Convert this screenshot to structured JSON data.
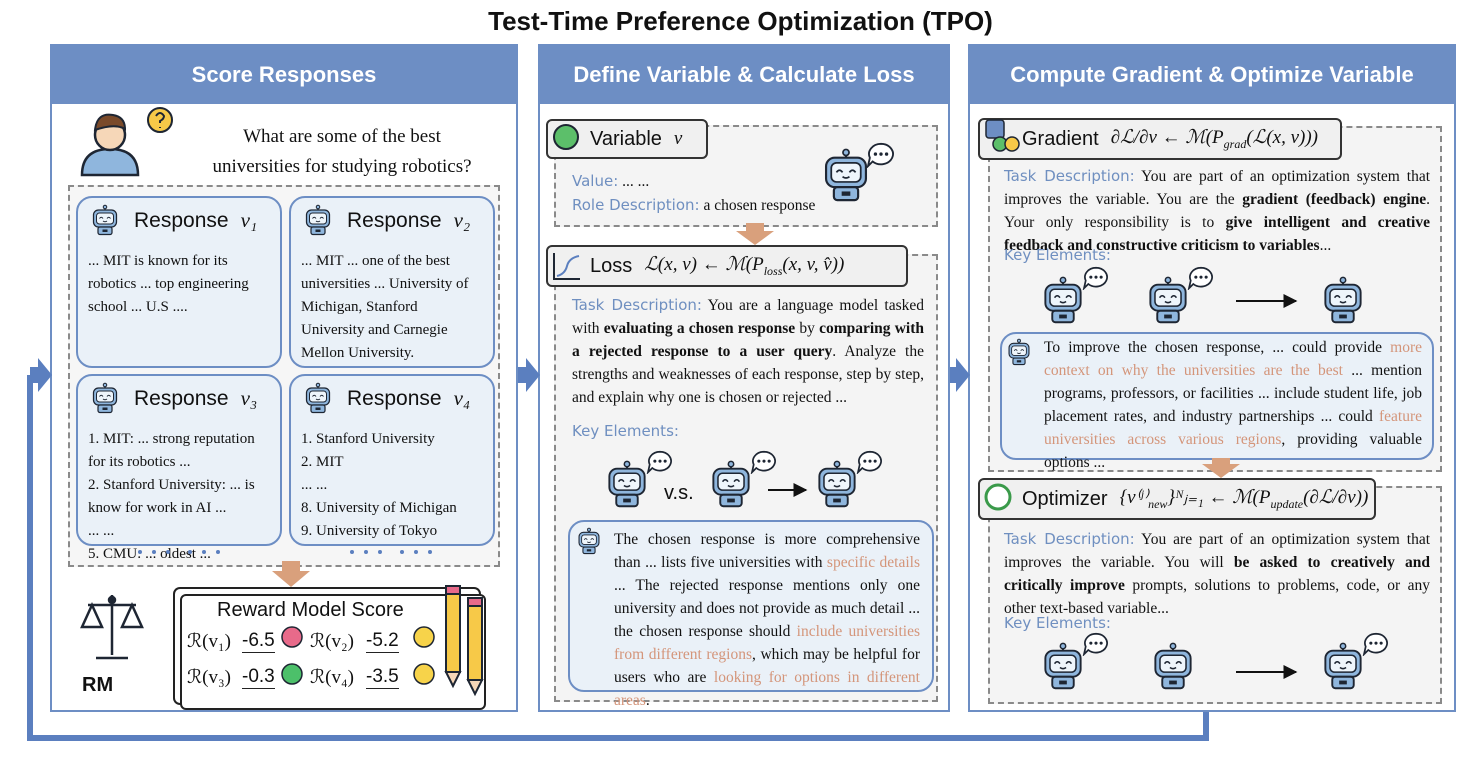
{
  "title": "Test-Time Preference Optimization (TPO)",
  "score_responses": {
    "header": "Score Responses",
    "question": "What are some of the best universities for studying robotics?",
    "responses": [
      {
        "label": "Response",
        "variable": "v₁",
        "lines": [
          "... MIT is known for its robotics ... top engineering school ... U.S ...."
        ]
      },
      {
        "label": "Response",
        "variable": "v₂",
        "lines": [
          "... MIT ... one of the best universities ... University of Michigan, Stanford University and Carnegie Mellon University."
        ]
      },
      {
        "label": "Response",
        "variable": "v₃",
        "lines": [
          "1. MIT: ... strong reputation for its robotics ...",
          "2. Stanford University: ... is know for work in AI ...",
          "... ...",
          "5. CMU: ... oldest ..."
        ]
      },
      {
        "label": "Response",
        "variable": "v₄",
        "lines": [
          "1. Stanford University",
          "2. MIT",
          "... ...",
          "8. University of Michigan",
          "9. University of Tokyo"
        ]
      }
    ],
    "rm_label": "RM",
    "score_title": "Reward Model Score",
    "scores": [
      {
        "label": "ℛ(v₁)",
        "value": -6.5
      },
      {
        "label": "ℛ(v₂)",
        "value": -5.2
      },
      {
        "label": "ℛ(v₃)",
        "value": -0.3
      },
      {
        "label": "ℛ(v₄)",
        "value": -3.5
      }
    ]
  },
  "calculate_loss": {
    "header": "Define Variable & Calculate Loss",
    "variable": {
      "name": "Variable",
      "symbol": "v",
      "value_label": "Value:",
      "value": "... ...",
      "role_label": "Role Description:",
      "role": "a chosen response"
    },
    "loss": {
      "name": "Loss",
      "formula": [
        "ℒ(x, v) ← ℳ(P",
        "loss",
        "(x, v, v̂))"
      ],
      "task_label": "Task Description:",
      "task": [
        "You are a language model tasked with ",
        "evaluating a chosen response",
        " by ",
        "comparing with a rejected response to a user query",
        ". Analyze the strengths and weaknesses of each response, step by step, and explain why one is chosen or rejected ..."
      ],
      "key_label": "Key Elements:",
      "versus": "v.s.",
      "feedback": [
        "The chosen response is more comprehensive than ... lists five universities with ",
        "specific details",
        " ... The rejected response mentions only one university and does not provide as much detail ... the chosen response should ",
        "include universities from different regions",
        ", which may be helpful for users who are ",
        "looking for options in different areas",
        "."
      ]
    }
  },
  "optimize": {
    "header": "Compute Gradient & Optimize Variable",
    "gradient": {
      "name": "Gradient",
      "formula": [
        "∂ℒ/∂v ← ℳ(P",
        "grad",
        "(ℒ(x, v)))"
      ],
      "task_label": "Task Description:",
      "task": [
        "You are part of an optimization system that improves the variable.  You are the ",
        "gradient (feedback) engine",
        ".  Your only responsibility is to ",
        "give intelligent and creative feedback and constructive criticism to variables",
        "..."
      ],
      "key_label": "Key Elements:",
      "feedback": [
        "To improve the chosen response, ... could provide ",
        "more context on why the universities are the best",
        " ... mention programs, professors, or facilities ... include student life, job placement rates, and industry partnerships ... could ",
        "feature universities across various regions",
        ", providing valuable options ..."
      ]
    },
    "optimizer": {
      "name": "Optimizer",
      "formula": [
        "{v⁽ʲ⁾",
        "new",
        "}ᴺⱼ₌₁ ← ℳ(P",
        "update",
        "(∂ℒ/∂v))"
      ],
      "task_label": "Task Description:",
      "task": [
        "You are part of an optimization system that improves the variable. You will ",
        "be asked to creatively and critically improve",
        " prompts, solutions to problems, code, or any other text-based variable..."
      ],
      "key_label": "Key Elements:"
    }
  }
}
